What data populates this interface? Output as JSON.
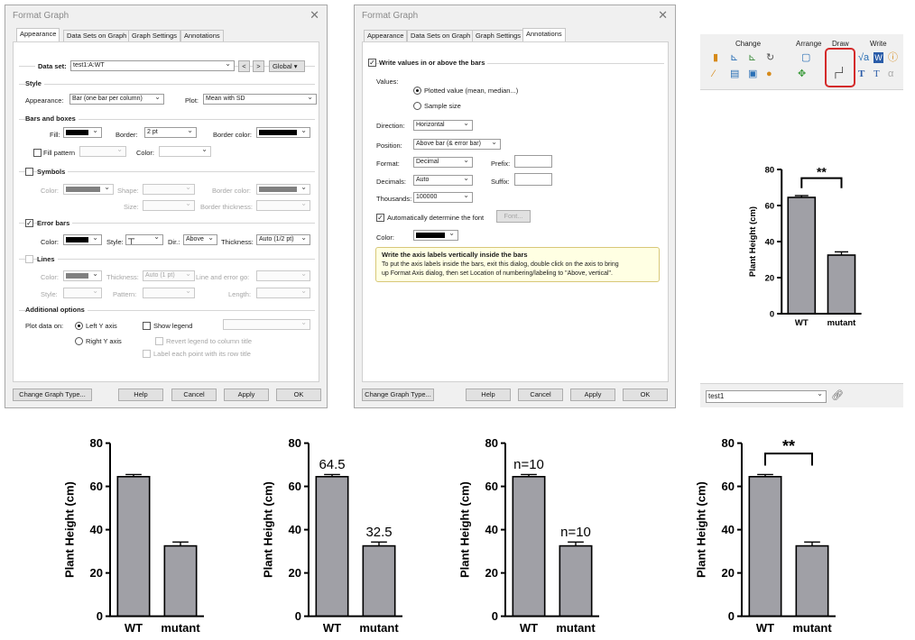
{
  "dialog1": {
    "title": "Format Graph",
    "tabs": [
      "Appearance",
      "Data Sets on Graph",
      "Graph Settings",
      "Annotations"
    ],
    "data_set_label": "Data set:",
    "data_set_value": "test1:A:WT",
    "nav_prev": "<",
    "nav_next": ">",
    "global_label": "Global",
    "style_header": "Style",
    "appearance_label": "Appearance:",
    "appearance_value": "Bar (one bar per column)",
    "plot_label": "Plot:",
    "plot_value": "Mean with SD",
    "bars_header": "Bars and boxes",
    "fill_label": "Fill:",
    "border_label": "Border:",
    "border_value": "2 pt",
    "border_color_label": "Border color:",
    "fill_pattern_label": "Fill pattern",
    "color_label": "Color:",
    "symbols_header": "Symbols",
    "shape_label": "Shape:",
    "size_label": "Size:",
    "border_thickness_label": "Border thickness:",
    "error_bars_header": "Error bars",
    "style_label": "Style:",
    "style_glyph": "┬",
    "dir_label": "Dir.:",
    "dir_value": "Above",
    "thickness_label": "Thickness:",
    "thickness_value": "Auto (1/2 pt)",
    "lines_header": "Lines",
    "lines_thickness_value": "Auto (1 pt)",
    "line_error_label": "Line and error go:",
    "pattern_label": "Pattern:",
    "length_label": "Length:",
    "additional_header": "Additional options",
    "plot_data_on_label": "Plot data on:",
    "left_y": "Left Y axis",
    "right_y": "Right  Y axis",
    "show_legend": "Show legend",
    "revert_legend": "Revert legend to column title",
    "label_each_point": "Label each point with its row title",
    "buttons": [
      "Change Graph Type...",
      "Help",
      "Cancel",
      "Apply",
      "OK"
    ]
  },
  "dialog2": {
    "title": "Format Graph",
    "tabs": [
      "Appearance",
      "Data Sets on Graph",
      "Graph Settings",
      "Annotations"
    ],
    "write_values_label": "Write values in or above the bars",
    "values_label": "Values:",
    "plotted_value": "Plotted value (mean, median...)",
    "sample_size": "Sample size",
    "direction_label": "Direction:",
    "direction_value": "Horizontal",
    "position_label": "Position:",
    "position_value": "Above bar (& error bar)",
    "format_label": "Format:",
    "format_value": "Decimal",
    "prefix_label": "Prefix:",
    "decimals_label": "Decimals:",
    "decimals_value": "Auto",
    "suffix_label": "Suffix:",
    "thousands_label": "Thousands:",
    "thousands_value": "100000",
    "auto_font_label": "Automatically determine the font",
    "font_button": "Font...",
    "color_label": "Color:",
    "note_title": "Write the axis labels vertically inside the bars",
    "note_line1": "To put the axis labels inside the bars, exit this dialog, double click on the axis to bring",
    "note_line2": "up Format Axis dialog, then set Location of numbering/labeling to \"Above, vertical\".",
    "buttons": [
      "Change Graph Type...",
      "Help",
      "Cancel",
      "Apply",
      "OK"
    ]
  },
  "ribbon": {
    "groups": [
      "Change",
      "Arrange",
      "Draw",
      "Write"
    ],
    "highlight_color": "#d42a2a"
  },
  "bottom_toolbar": {
    "sheet_value": "test1"
  },
  "colors": {
    "bar": "#a0a0a6",
    "swatch_black": "#000000",
    "swatch_gray": "#808080"
  },
  "chart_data": [
    {
      "type": "bar",
      "categories": [
        "WT",
        "mutant"
      ],
      "values": [
        64.5,
        32.5
      ],
      "error": [
        1.0,
        1.8
      ],
      "ylabel": "Plant Height (cm)",
      "ylim": [
        0,
        80
      ],
      "yticks": [
        0,
        20,
        40,
        60,
        80
      ],
      "annotation": "**"
    },
    {
      "type": "bar",
      "categories": [
        "WT",
        "mutant"
      ],
      "values": [
        64.5,
        32.5
      ],
      "error": [
        1.0,
        1.8
      ],
      "ylabel": "Plant Height (cm)",
      "ylim": [
        0,
        80
      ],
      "yticks": [
        0,
        20,
        40,
        60,
        80
      ]
    },
    {
      "type": "bar",
      "categories": [
        "WT",
        "mutant"
      ],
      "values": [
        64.5,
        32.5
      ],
      "error": [
        1.0,
        1.8
      ],
      "ylabel": "Plant Height (cm)",
      "ylim": [
        0,
        80
      ],
      "yticks": [
        0,
        20,
        40,
        60,
        80
      ],
      "bar_labels": [
        "64.5",
        "32.5"
      ]
    },
    {
      "type": "bar",
      "categories": [
        "WT",
        "mutant"
      ],
      "values": [
        64.5,
        32.5
      ],
      "error": [
        1.0,
        1.8
      ],
      "ylabel": "Plant Height (cm)",
      "ylim": [
        0,
        80
      ],
      "yticks": [
        0,
        20,
        40,
        60,
        80
      ],
      "bar_labels": [
        "n=10",
        "n=10"
      ]
    },
    {
      "type": "bar",
      "categories": [
        "WT",
        "mutant"
      ],
      "values": [
        64.5,
        32.5
      ],
      "error": [
        1.0,
        1.8
      ],
      "ylabel": "Plant Height (cm)",
      "ylim": [
        0,
        80
      ],
      "yticks": [
        0,
        20,
        40,
        60,
        80
      ],
      "annotation": "**"
    }
  ]
}
